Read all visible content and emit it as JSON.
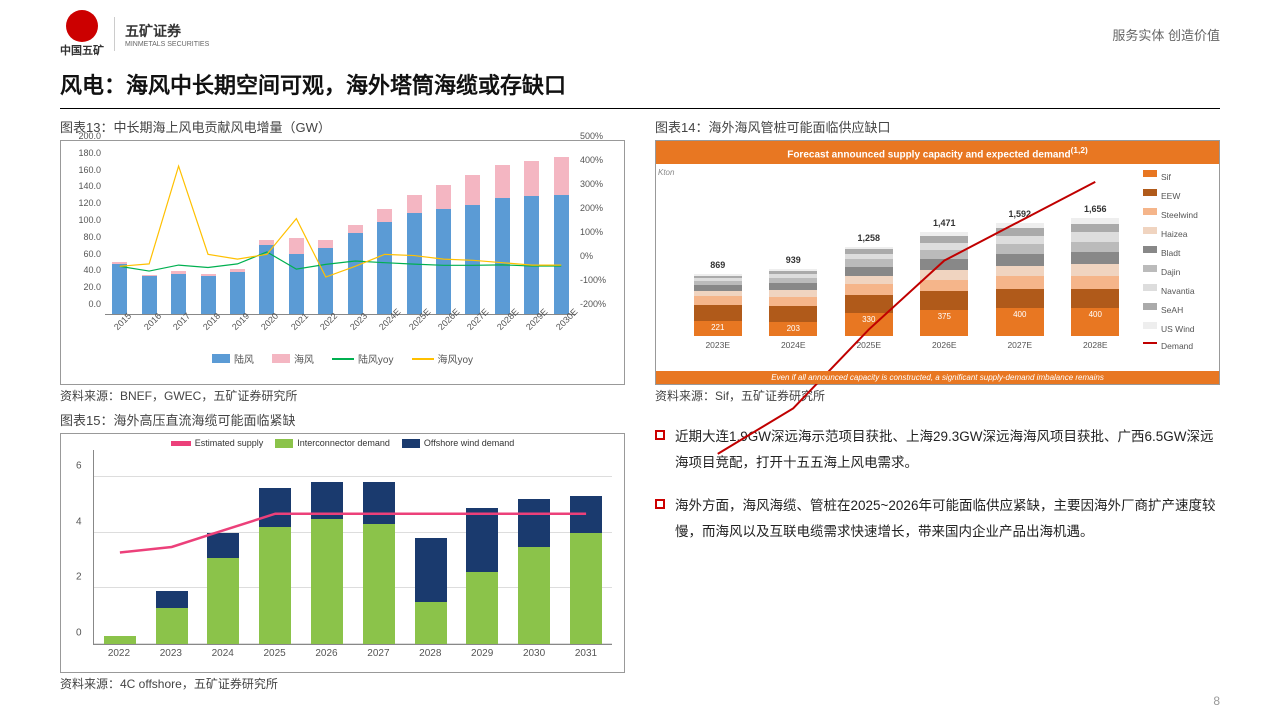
{
  "header": {
    "logo_text": "中国五矿",
    "company_cn": "五矿证券",
    "company_en": "MINMETALS SECURITIES",
    "tagline": "服务实体  创造价值"
  },
  "title": "风电：海风中长期空间可观，海外塔筒海缆或存缺口",
  "page_number": "8",
  "chart13": {
    "title": "图表13：中长期海上风电贡献风电增量（GW）",
    "source": "资料来源：BNEF，GWEC，五矿证券研究所",
    "categories": [
      "2015",
      "2016",
      "2017",
      "2018",
      "2019",
      "2020",
      "2021",
      "2022",
      "2023",
      "2024E",
      "2025E",
      "2026E",
      "2027E",
      "2028E",
      "2029E",
      "2030E"
    ],
    "onshore": [
      60,
      45,
      48,
      45,
      50,
      82,
      72,
      78,
      96,
      110,
      120,
      125,
      130,
      138,
      140,
      142
    ],
    "offshore": [
      2,
      2,
      3,
      3,
      4,
      6,
      18,
      10,
      10,
      15,
      22,
      28,
      35,
      40,
      42,
      45
    ],
    "onshore_yoy": [
      0,
      -20,
      5,
      -5,
      10,
      60,
      -12,
      8,
      22,
      15,
      9,
      4,
      4,
      6,
      1,
      1
    ],
    "offshore_yoy": [
      0,
      10,
      420,
      50,
      30,
      50,
      200,
      -45,
      0,
      50,
      45,
      30,
      25,
      15,
      5,
      5
    ],
    "yl_ticks": [
      0,
      20,
      40,
      60,
      80,
      100,
      120,
      140,
      160,
      180,
      200
    ],
    "yr_ticks": [
      -200,
      -100,
      0,
      100,
      200,
      300,
      400,
      500
    ],
    "yl_max": 200,
    "yr_min": -200,
    "yr_max": 500,
    "colors": {
      "onshore": "#5b9bd5",
      "offshore": "#f4b6c2",
      "onshore_yoy": "#00b050",
      "offshore_yoy": "#ffc000"
    },
    "legend": {
      "onshore": "陆风",
      "offshore": "海风",
      "onshore_yoy": "陆风yoy",
      "offshore_yoy": "海风yoy"
    }
  },
  "chart14": {
    "title": "图表14：海外海风管桩可能面临供应缺口",
    "source": "资料来源：Sif，五矿证券研究所",
    "header_text": "Forecast announced supply capacity and expected demand",
    "footer_text": "Even if all announced capacity is constructed, a significant supply-demand imbalance remains",
    "categories": [
      "2023E",
      "2024E",
      "2025E",
      "2026E",
      "2027E",
      "2028E"
    ],
    "totals": [
      "869",
      "939",
      "1,258",
      "1,471",
      "1,592",
      "1,656"
    ],
    "ylabel": "Kton",
    "series": [
      {
        "name": "Sif",
        "color": "#e87722",
        "values": [
          221,
          203,
          330,
          375,
          400,
          400
        ]
      },
      {
        "name": "EEW",
        "color": "#b05a1a",
        "values": [
          220,
          220,
          250,
          260,
          270,
          270
        ]
      },
      {
        "name": "Steelwind",
        "color": "#f5b58a",
        "values": [
          120,
          130,
          150,
          160,
          170,
          180
        ]
      },
      {
        "name": "Haizea",
        "color": "#f0d4c0",
        "values": [
          80,
          100,
          120,
          140,
          150,
          160
        ]
      },
      {
        "name": "Bladt",
        "color": "#888888",
        "values": [
          80,
          100,
          130,
          150,
          160,
          170
        ]
      },
      {
        "name": "Dajin",
        "color": "#bbbbbb",
        "values": [
          60,
          70,
          100,
          120,
          140,
          150
        ]
      },
      {
        "name": "Navantia",
        "color": "#dddddd",
        "values": [
          40,
          50,
          80,
          100,
          120,
          130
        ]
      },
      {
        "name": "SeAH",
        "color": "#aaaaaa",
        "values": [
          30,
          40,
          60,
          100,
          110,
          120
        ]
      },
      {
        "name": "US Wind",
        "color": "#eeeeee",
        "values": [
          18,
          26,
          38,
          66,
          72,
          76
        ]
      }
    ],
    "demand": {
      "name": "Demand",
      "color": "#c00000",
      "values": [
        869,
        1100,
        1500,
        1850,
        2050,
        2250
      ]
    },
    "ymax": 2300
  },
  "chart15": {
    "title": "图表15：海外高压直流海缆可能面临紧缺",
    "source": "资料来源：4C offshore，五矿证券研究所",
    "categories": [
      "2022",
      "2023",
      "2024",
      "2025",
      "2026",
      "2027",
      "2028",
      "2029",
      "2030",
      "2031"
    ],
    "interconnector": [
      0.3,
      1.3,
      3.1,
      4.2,
      4.5,
      4.3,
      1.5,
      2.6,
      3.5,
      4.0
    ],
    "offshore_wind": [
      0.0,
      0.6,
      0.9,
      1.4,
      1.3,
      1.5,
      2.3,
      2.3,
      1.7,
      1.3
    ],
    "supply": [
      3.3,
      3.5,
      4.1,
      4.7,
      4.7,
      4.7,
      4.7,
      4.7,
      4.7,
      4.7
    ],
    "yticks": [
      0,
      2,
      4,
      6
    ],
    "ymax": 7,
    "colors": {
      "inter": "#8bc34a",
      "wind": "#1a3a6e",
      "supply": "#ec407a"
    },
    "legend": {
      "supply": "Estimated supply",
      "inter": "Interconnector demand",
      "wind": "Offshore wind demand"
    }
  },
  "bullets": [
    "近期大连1.9GW深远海示范项目获批、上海29.3GW深远海海风项目获批、广西6.5GW深远海项目竞配，打开十五五海上风电需求。",
    "海外方面，海风海缆、管桩在2025~2026年可能面临供应紧缺，主要因海外厂商扩产速度较慢，而海风以及互联电缆需求快速增长，带来国内企业产品出海机遇。"
  ]
}
